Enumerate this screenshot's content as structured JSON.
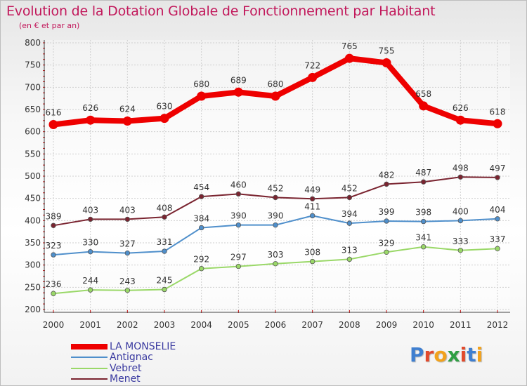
{
  "title": "Evolution de la Dotation Globale de Fonctionnement par Habitant",
  "subtitle": "(en € et par an)",
  "logo_text": "Proxiti",
  "colors": {
    "title": "#c2185b",
    "axis": "#555555",
    "grid": "#cfcfcf",
    "tick_marks": "#cc0000",
    "legend_text": "#3a3aa0"
  },
  "chart_data": {
    "type": "line",
    "title": "Evolution de la Dotation Globale de Fonctionnement par Habitant",
    "subtitle": "(en € et par an)",
    "x": [
      "2000",
      "2001",
      "2002",
      "2003",
      "2004",
      "2005",
      "2006",
      "2007",
      "2008",
      "2009",
      "2010",
      "2011",
      "2012"
    ],
    "ylim": [
      200,
      800
    ],
    "yticks": [
      200,
      250,
      300,
      350,
      400,
      450,
      500,
      550,
      600,
      650,
      700,
      750,
      800
    ],
    "grid": true,
    "legend_position": "bottom-left",
    "series": [
      {
        "name": "LA MONSELIE",
        "color": "#ee0000",
        "bold": true,
        "values": [
          616,
          626,
          624,
          630,
          680,
          689,
          680,
          722,
          765,
          755,
          658,
          626,
          618
        ]
      },
      {
        "name": "Antignac",
        "color": "#4f8fcb",
        "bold": false,
        "values": [
          323,
          330,
          327,
          331,
          384,
          390,
          390,
          411,
          394,
          399,
          398,
          400,
          404
        ]
      },
      {
        "name": "Vebret",
        "color": "#9ad868",
        "bold": false,
        "values": [
          236,
          244,
          243,
          245,
          292,
          297,
          303,
          308,
          313,
          329,
          341,
          333,
          337
        ]
      },
      {
        "name": "Menet",
        "color": "#7a2430",
        "bold": false,
        "values": [
          389,
          403,
          403,
          408,
          454,
          460,
          452,
          449,
          452,
          482,
          487,
          498,
          497
        ]
      }
    ]
  }
}
